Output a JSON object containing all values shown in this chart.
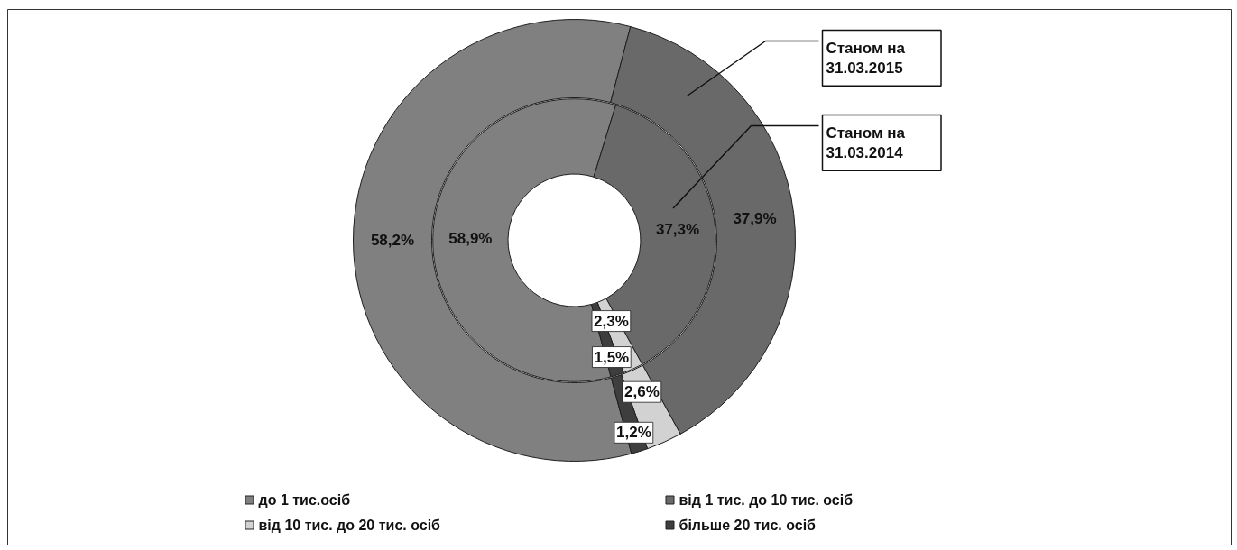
{
  "chart_data": {
    "type": "donut",
    "categories": [
      "до 1 тис.осіб",
      "від 1 тис. до 10 тис. осіб",
      "від 10 тис. до 20 тис. осіб",
      "більше 20 тис. осіб"
    ],
    "colors": [
      "#808080",
      "#696969",
      "#d2d2d2",
      "#3e3e3e"
    ],
    "series": [
      {
        "name": "Станом на 31.03.2015",
        "values": [
          58.2,
          37.9,
          2.6,
          1.2
        ],
        "value_labels": [
          "58,2%",
          "37,9%",
          "2,6%",
          "1,2%"
        ]
      },
      {
        "name": "Станом на 31.03.2014",
        "values": [
          58.9,
          37.3,
          2.3,
          1.5
        ],
        "value_labels": [
          "58,9%",
          "37,3%",
          "2,3%",
          "1,5%"
        ]
      }
    ],
    "legend": "bottom"
  }
}
